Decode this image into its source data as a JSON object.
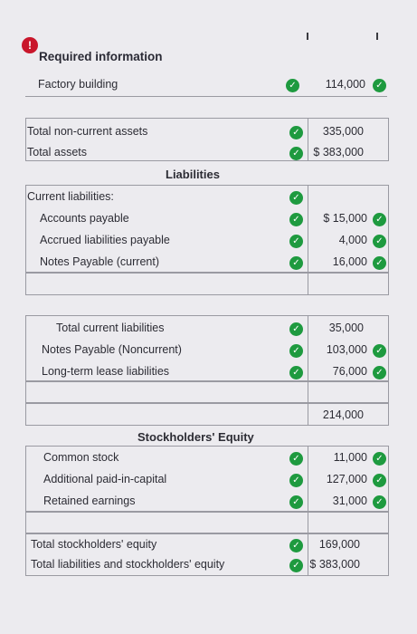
{
  "header": {
    "alert_glyph": "!",
    "title": "Required information"
  },
  "rows": {
    "factory_building": {
      "label": "Factory building",
      "value": "114,000"
    },
    "total_noncurrent": {
      "label": "Total non-current assets",
      "value": "335,000"
    },
    "total_assets": {
      "label": "Total assets",
      "value": "$ 383,000"
    },
    "liabilities_header": "Liabilities",
    "current_liabilities": {
      "label": "Current liabilities:"
    },
    "accounts_payable": {
      "label": "Accounts payable",
      "value": "$  15,000"
    },
    "accrued_liabilities": {
      "label": "Accrued liabilities payable",
      "value": "4,000"
    },
    "notes_payable_current": {
      "label": "Notes Payable (current)",
      "value": "16,000"
    },
    "total_current_liabilities": {
      "label": "Total current liabilities",
      "value": "35,000"
    },
    "notes_payable_noncurrent": {
      "label": "Notes Payable (Noncurrent)",
      "value": "103,000"
    },
    "lease_liabilities": {
      "label": "Long-term lease liabilities",
      "value": "76,000"
    },
    "total_liabilities_value": "214,000",
    "equity_header": "Stockholders' Equity",
    "common_stock": {
      "label": "Common stock",
      "value": "11,000"
    },
    "apic": {
      "label": "Additional paid-in-capital",
      "value": "127,000"
    },
    "retained_earnings": {
      "label": "Retained earnings",
      "value": "31,000"
    },
    "total_equity": {
      "label": "Total stockholders' equity",
      "value": "169,000"
    },
    "total_liab_equity": {
      "label": "Total liabilities and stockholders' equity",
      "value": "$ 383,000"
    }
  },
  "colors": {
    "check": "#1e9a3f",
    "alert": "#c9162b",
    "background": "#ecebef"
  }
}
